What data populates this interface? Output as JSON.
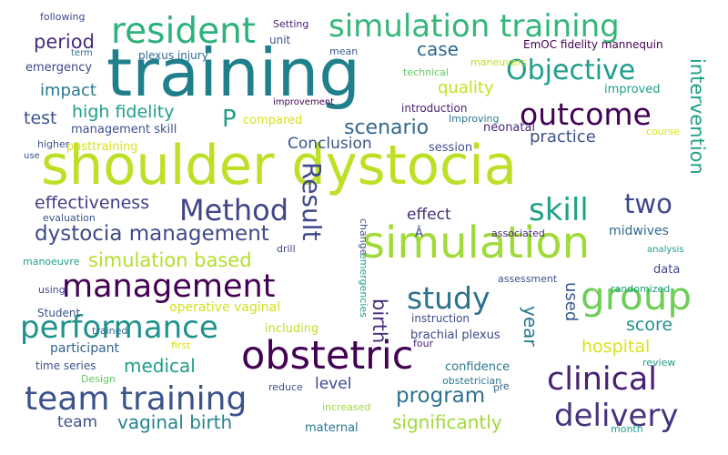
{
  "words": [
    {
      "text": "shoulder dystocia",
      "color": "#bddf26"
    },
    {
      "text": "training",
      "color": "#1f7f8b"
    },
    {
      "text": "simulation",
      "color": "#a0da39"
    },
    {
      "text": "obstetric",
      "color": "#440154"
    },
    {
      "text": "team training",
      "color": "#3b528b"
    },
    {
      "text": "simulation training",
      "color": "#35b779"
    },
    {
      "text": "management",
      "color": "#440154"
    },
    {
      "text": "group",
      "color": "#6ece58"
    },
    {
      "text": "resident",
      "color": "#2db27d"
    },
    {
      "text": "performance",
      "color": "#20928c"
    },
    {
      "text": "outcome",
      "color": "#440154"
    },
    {
      "text": "Objective",
      "color": "#1f9e89"
    },
    {
      "text": "clinical",
      "color": "#482173"
    },
    {
      "text": "Method",
      "color": "#414487"
    },
    {
      "text": "study",
      "color": "#2c728e"
    },
    {
      "text": "skill",
      "color": "#1fa188"
    },
    {
      "text": "delivery",
      "color": "#46327e"
    },
    {
      "text": "Result",
      "color": "#3e4989"
    },
    {
      "text": "dystocia management",
      "color": "#3e4989"
    },
    {
      "text": "two",
      "color": "#3e4989"
    },
    {
      "text": "intervention",
      "color": "#1fa188"
    },
    {
      "text": "simulation based",
      "color": "#b5de2b"
    },
    {
      "text": "program",
      "color": "#2c728e"
    },
    {
      "text": "P",
      "color": "#1f9e89"
    },
    {
      "text": "period",
      "color": "#472d7b"
    },
    {
      "text": "scenario",
      "color": "#31688e"
    },
    {
      "text": "significantly",
      "color": "#a0da39"
    },
    {
      "text": "case",
      "color": "#31688e"
    },
    {
      "text": "high fidelity",
      "color": "#1f9e89"
    },
    {
      "text": "vaginal birth",
      "color": "#26828e"
    },
    {
      "text": "effectiveness",
      "color": "#433e85"
    },
    {
      "text": "medical",
      "color": "#1f9e89"
    },
    {
      "text": "quality",
      "color": "#c8e020"
    },
    {
      "text": "impact",
      "color": "#2a788e"
    },
    {
      "text": "test",
      "color": "#3b528b"
    },
    {
      "text": "practice",
      "color": "#3b528b"
    },
    {
      "text": "Conclusion",
      "color": "#39568c"
    },
    {
      "text": "score",
      "color": "#21918c"
    },
    {
      "text": "hospital",
      "color": "#d8e219"
    },
    {
      "text": "birth",
      "color": "#472d7b"
    },
    {
      "text": "year",
      "color": "#2a788e"
    },
    {
      "text": "team",
      "color": "#3b528b"
    },
    {
      "text": "level",
      "color": "#3e4989"
    },
    {
      "text": "effect",
      "color": "#472d7b"
    },
    {
      "text": "used",
      "color": "#38598c"
    },
    {
      "text": "operative vaginal",
      "color": "#d2e21b"
    },
    {
      "text": "participant",
      "color": "#33638d"
    },
    {
      "text": "management skill",
      "color": "#3b528b"
    },
    {
      "text": "brachial plexus",
      "color": "#3e4989"
    },
    {
      "text": "midwives",
      "color": "#31688e"
    },
    {
      "text": "compared",
      "color": "#d2e21b"
    },
    {
      "text": "neonatal",
      "color": "#482878"
    },
    {
      "text": "confidence",
      "color": "#2a788e"
    },
    {
      "text": "maternal",
      "color": "#2a788e"
    },
    {
      "text": "emergency",
      "color": "#3e4989"
    },
    {
      "text": "posttraining",
      "color": "#d8e219"
    },
    {
      "text": "session",
      "color": "#3b528b"
    },
    {
      "text": "improved",
      "color": "#1f9e89"
    },
    {
      "text": "randomized",
      "color": "#1f9e89"
    },
    {
      "text": "including",
      "color": "#bddf26"
    },
    {
      "text": "increased",
      "color": "#a0da39"
    },
    {
      "text": "Student",
      "color": "#3b528b"
    },
    {
      "text": "trained",
      "color": "#31688e"
    },
    {
      "text": "time series",
      "color": "#3b528b"
    },
    {
      "text": "data",
      "color": "#3e4989"
    },
    {
      "text": "mean",
      "color": "#38598c"
    },
    {
      "text": "technical",
      "color": "#5ec962"
    },
    {
      "text": "introduction",
      "color": "#482173"
    },
    {
      "text": "Improving",
      "color": "#2a788e"
    },
    {
      "text": "EmOC fidelity mannequin",
      "color": "#440154"
    },
    {
      "text": "maneuvers",
      "color": "#bddf26"
    },
    {
      "text": "plexus injury",
      "color": "#31688e"
    },
    {
      "text": "unit",
      "color": "#3b528b"
    },
    {
      "text": "Setting",
      "color": "#481b6d"
    },
    {
      "text": "following",
      "color": "#3e4989"
    },
    {
      "text": "term",
      "color": "#31688e"
    },
    {
      "text": "improvement",
      "color": "#440154"
    },
    {
      "text": "higher",
      "color": "#3b528b"
    },
    {
      "text": "use",
      "color": "#3b528b"
    },
    {
      "text": "evaluation",
      "color": "#3b528b"
    },
    {
      "text": "manoeuvre",
      "color": "#1f9e89"
    },
    {
      "text": "using",
      "color": "#3e4989"
    },
    {
      "text": "drill",
      "color": "#3e4989"
    },
    {
      "text": "associated",
      "color": "#472d7b"
    },
    {
      "text": "analysis",
      "color": "#1f9e89"
    },
    {
      "text": "assessment",
      "color": "#3b528b"
    },
    {
      "text": "instruction",
      "color": "#3e4989"
    },
    {
      "text": "first",
      "color": "#d8e219"
    },
    {
      "text": "four",
      "color": "#482878"
    },
    {
      "text": "Design",
      "color": "#5ec962"
    },
    {
      "text": "reduce",
      "color": "#3b528b"
    },
    {
      "text": "review",
      "color": "#1f9e89"
    },
    {
      "text": "obstetrician",
      "color": "#2a788e"
    },
    {
      "text": "pre",
      "color": "#31688e"
    },
    {
      "text": "month",
      "color": "#1f9e89"
    },
    {
      "text": "course",
      "color": "#d8e219"
    },
    {
      "text": "change",
      "color": "#3b528b"
    },
    {
      "text": "emergencies",
      "color": "#1f9e89"
    },
    {
      "text": "Â",
      "color": "#3e4989"
    }
  ]
}
